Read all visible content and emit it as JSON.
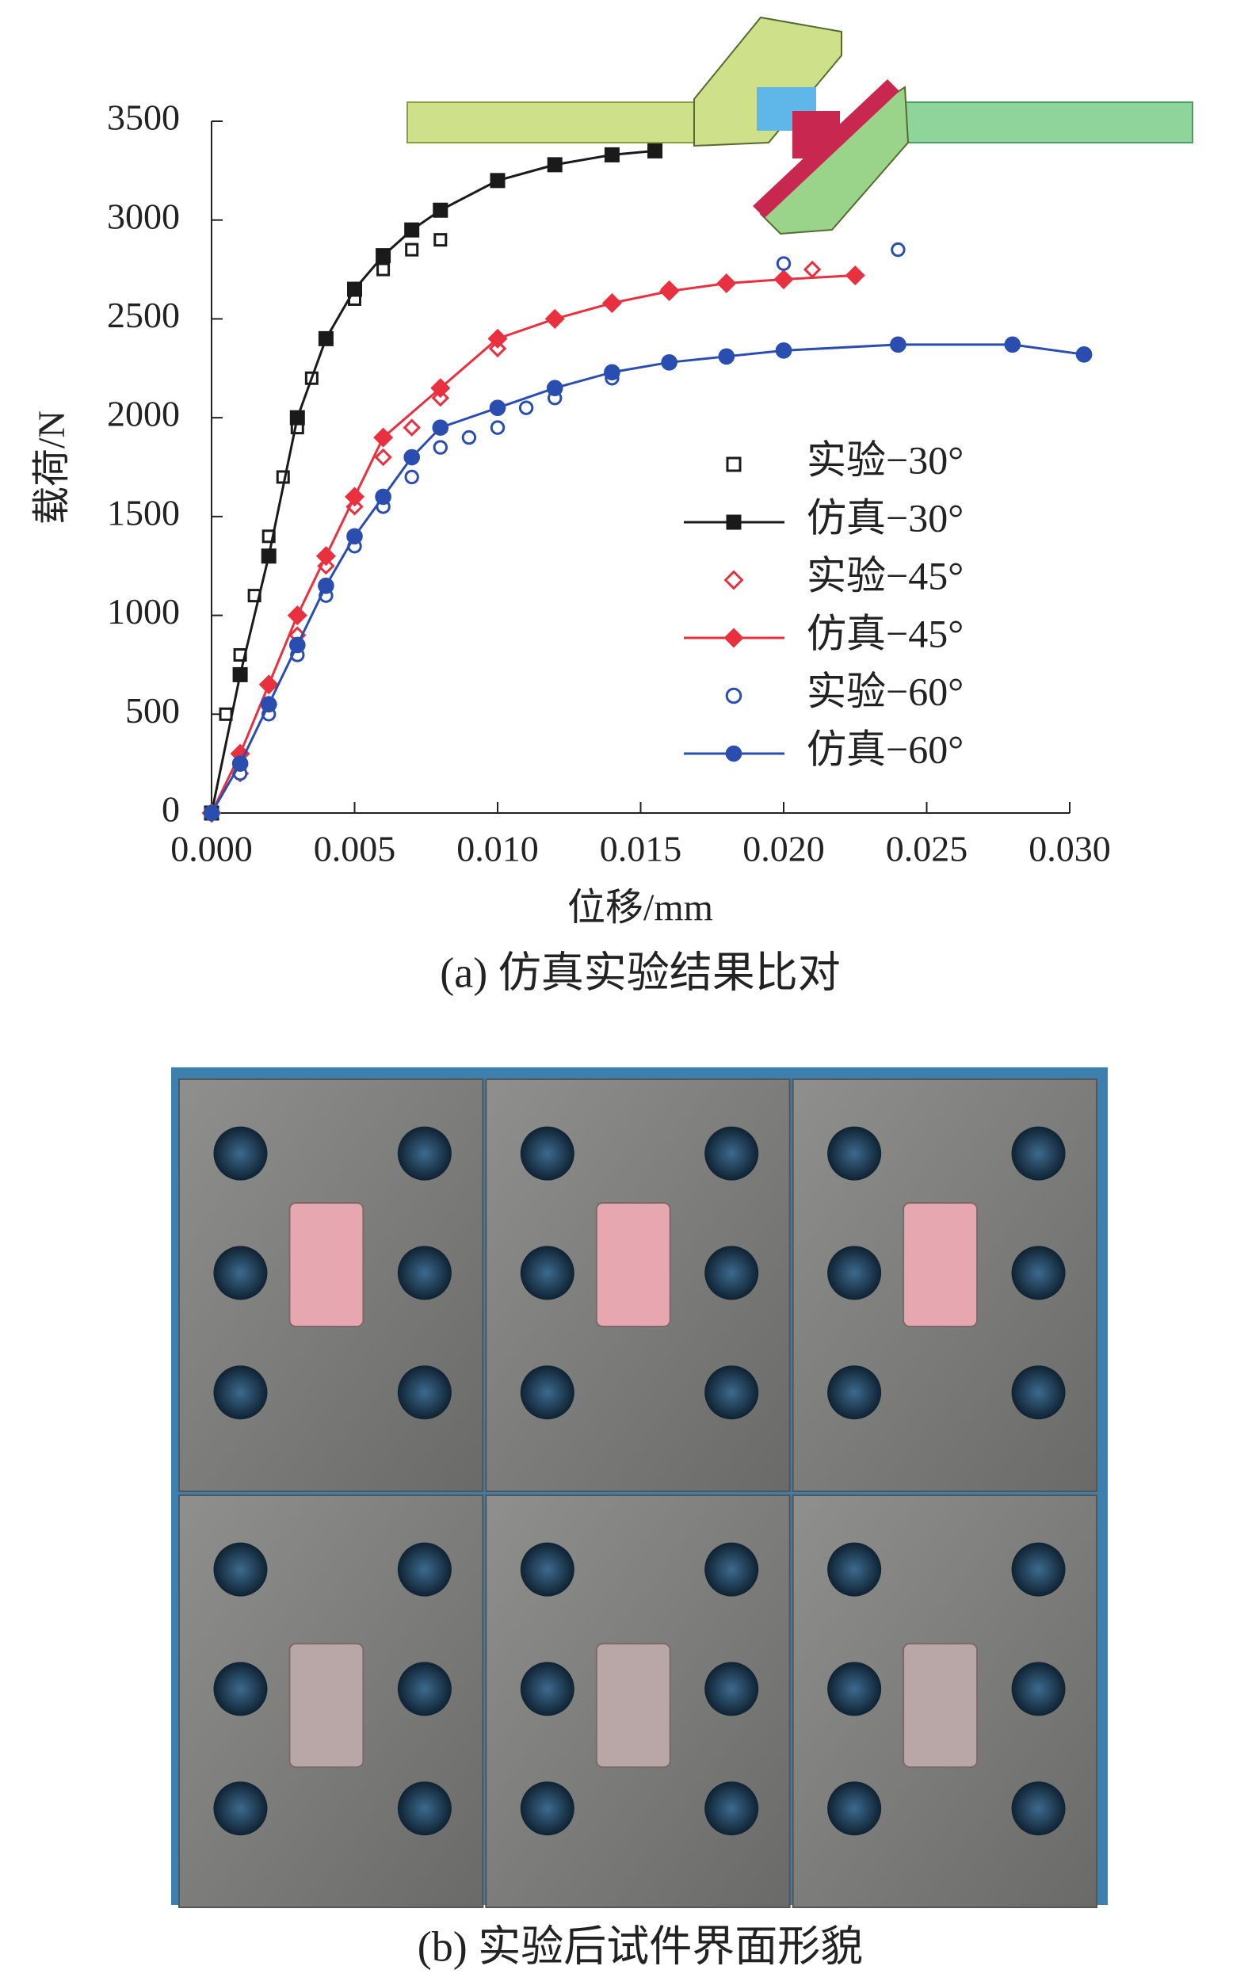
{
  "chart_data": {
    "type": "scatter",
    "caption": "(a) 仿真实验结果比对",
    "xlabel": "位移/mm",
    "ylabel": "载荷/N",
    "xlim": [
      0,
      0.03
    ],
    "ylim": [
      0,
      3500
    ],
    "xticks": [
      {
        "value": 0,
        "label": "0.000"
      },
      {
        "value": 0.005,
        "label": "0.005"
      },
      {
        "value": 0.01,
        "label": "0.010"
      },
      {
        "value": 0.015,
        "label": "0.015"
      },
      {
        "value": 0.02,
        "label": "0.020"
      },
      {
        "value": 0.025,
        "label": "0.025"
      },
      {
        "value": 0.03,
        "label": "0.030"
      }
    ],
    "yticks": [
      0,
      500,
      1000,
      1500,
      2000,
      2500,
      3000,
      3500
    ],
    "series": [
      {
        "name": "实验−30°",
        "color": "#1a1a1a",
        "mode": "markers",
        "marker": "square",
        "x": [
          0.0005,
          0.001,
          0.0015,
          0.002,
          0.0025,
          0.003,
          0.0035,
          0.004,
          0.005,
          0.006,
          0.007,
          0.008
        ],
        "values": [
          500,
          800,
          1100,
          1400,
          1700,
          1950,
          2200,
          2400,
          2600,
          2750,
          2850,
          2900
        ]
      },
      {
        "name": "仿真−30°",
        "color": "#1a1a1a",
        "mode": "lines+markers",
        "marker": "square",
        "x": [
          0,
          0.001,
          0.002,
          0.003,
          0.004,
          0.005,
          0.006,
          0.007,
          0.008,
          0.01,
          0.012,
          0.014,
          0.0155
        ],
        "values": [
          0,
          700,
          1300,
          2000,
          2400,
          2650,
          2820,
          2950,
          3050,
          3200,
          3280,
          3330,
          3350
        ]
      },
      {
        "name": "实验−45°",
        "color": "#e8303f",
        "mode": "markers",
        "marker": "diamond",
        "x": [
          0.001,
          0.002,
          0.003,
          0.004,
          0.005,
          0.006,
          0.007,
          0.008,
          0.01,
          0.012,
          0.016,
          0.021
        ],
        "values": [
          200,
          550,
          900,
          1250,
          1550,
          1800,
          1950,
          2100,
          2350,
          2500,
          2650,
          2750
        ]
      },
      {
        "name": "仿真−45°",
        "color": "#e8303f",
        "mode": "lines+markers",
        "marker": "diamond",
        "x": [
          0,
          0.001,
          0.002,
          0.003,
          0.004,
          0.005,
          0.006,
          0.008,
          0.01,
          0.012,
          0.014,
          0.016,
          0.018,
          0.02,
          0.0225
        ],
        "values": [
          0,
          300,
          650,
          1000,
          1300,
          1600,
          1900,
          2150,
          2400,
          2500,
          2580,
          2640,
          2680,
          2700,
          2720
        ]
      },
      {
        "name": "实验−60°",
        "color": "#2a4db0",
        "mode": "markers",
        "marker": "circle",
        "x": [
          0.001,
          0.002,
          0.003,
          0.004,
          0.005,
          0.006,
          0.007,
          0.008,
          0.009,
          0.01,
          0.011,
          0.012,
          0.014,
          0.02,
          0.024
        ],
        "values": [
          200,
          500,
          800,
          1100,
          1350,
          1550,
          1700,
          1850,
          1900,
          1950,
          2050,
          2100,
          2200,
          2780,
          2850
        ]
      },
      {
        "name": "仿真−60°",
        "color": "#2a4db0",
        "mode": "lines+markers",
        "marker": "circle",
        "x": [
          0,
          0.001,
          0.002,
          0.003,
          0.004,
          0.005,
          0.006,
          0.007,
          0.008,
          0.01,
          0.012,
          0.014,
          0.016,
          0.018,
          0.02,
          0.024,
          0.028,
          0.0305
        ],
        "values": [
          0,
          250,
          550,
          850,
          1150,
          1400,
          1600,
          1800,
          1950,
          2050,
          2150,
          2230,
          2280,
          2310,
          2340,
          2370,
          2370,
          2320
        ]
      }
    ]
  },
  "photo": {
    "caption": "(b) 实验后试件界面形貌"
  }
}
